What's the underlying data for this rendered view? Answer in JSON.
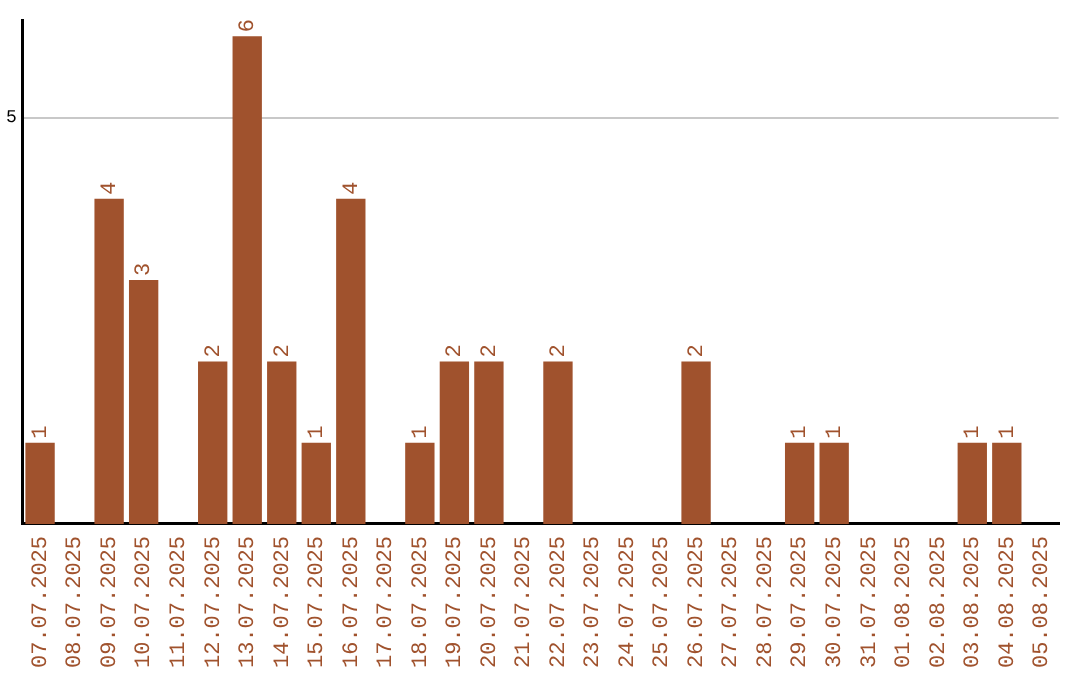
{
  "chart_data": {
    "type": "bar",
    "categories": [
      "07.07.2025",
      "08.07.2025",
      "09.07.2025",
      "10.07.2025",
      "11.07.2025",
      "12.07.2025",
      "13.07.2025",
      "14.07.2025",
      "15.07.2025",
      "16.07.2025",
      "17.07.2025",
      "18.07.2025",
      "19.07.2025",
      "20.07.2025",
      "21.07.2025",
      "22.07.2025",
      "23.07.2025",
      "24.07.2025",
      "25.07.2025",
      "26.07.2025",
      "27.07.2025",
      "28.07.2025",
      "29.07.2025",
      "30.07.2025",
      "31.07.2025",
      "01.08.2025",
      "02.08.2025",
      "03.08.2025",
      "04.08.2025",
      "05.08.2025"
    ],
    "values": [
      1,
      0,
      4,
      3,
      0,
      2,
      6,
      2,
      1,
      4,
      0,
      1,
      2,
      2,
      0,
      2,
      0,
      0,
      0,
      2,
      0,
      0,
      1,
      1,
      0,
      0,
      0,
      1,
      1,
      0
    ],
    "value_labels": [
      "1",
      null,
      "4",
      "3",
      null,
      "2",
      "6",
      "2",
      "1",
      "4",
      null,
      "1",
      "2",
      "2",
      null,
      "2",
      null,
      null,
      null,
      "2",
      null,
      null,
      "1",
      "1",
      null,
      null,
      null,
      "1",
      "1",
      null
    ],
    "color": "#a0522d",
    "ylim": [
      0,
      6.2
    ],
    "yticks": [
      5
    ],
    "grid": "y",
    "legend": false
  }
}
